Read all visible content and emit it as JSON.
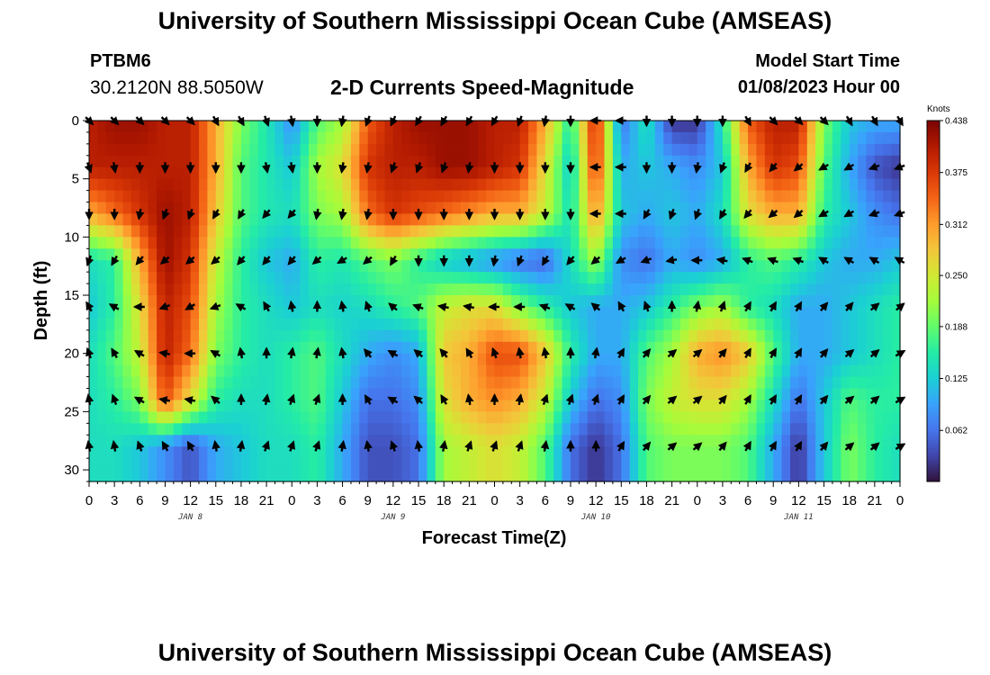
{
  "header": {
    "title": "University of Southern Mississippi Ocean Cube (AMSEAS)",
    "station": "PTBM6",
    "coordinates": "30.2120N  88.5050W",
    "subtitle": "2-D Currents Speed-Magnitude",
    "model_start_label": "Model Start Time",
    "model_start_value": "01/08/2023 Hour 00"
  },
  "footer": {
    "title": "University of Southern Mississippi Ocean Cube (AMSEAS)"
  },
  "chart_data": {
    "type": "heatmap",
    "title": "2-D Currents Speed-Magnitude",
    "xlabel": "Forecast Time(Z)",
    "ylabel": "Depth (ft)",
    "x_ticks": [
      "0",
      "3",
      "6",
      "9",
      "12",
      "15",
      "18",
      "21",
      "0",
      "3",
      "6",
      "9",
      "12",
      "15",
      "18",
      "21",
      "0",
      "3",
      "6",
      "9",
      "12",
      "15",
      "18",
      "21",
      "0",
      "3",
      "6",
      "9",
      "12",
      "15",
      "18",
      "21",
      "0"
    ],
    "date_labels": [
      {
        "hour": 12,
        "label": "JAN 8"
      },
      {
        "hour": 36,
        "label": "JAN 9"
      },
      {
        "hour": 60,
        "label": "JAN 10"
      },
      {
        "hour": 84,
        "label": "JAN 11"
      }
    ],
    "xlim_hours": [
      0,
      96
    ],
    "y_ticks": [
      0,
      5,
      10,
      15,
      20,
      25,
      30
    ],
    "ylim": [
      0,
      31
    ],
    "y_inverted": true,
    "colorbar": {
      "unit": "Knots",
      "ticks": [
        0.438,
        0.375,
        0.312,
        0.25,
        0.188,
        0.125,
        0.062
      ],
      "range": [
        0,
        0.438
      ],
      "colormap": [
        "#30123b",
        "#4145ab",
        "#4675ed",
        "#39a2fc",
        "#1bcfd4",
        "#24eca6",
        "#61fc6c",
        "#a4fc3b",
        "#d1e834",
        "#f3c63a",
        "#fe9b2d",
        "#f36315",
        "#d93806",
        "#b11901",
        "#7a0402"
      ]
    },
    "hours": [
      0,
      3,
      6,
      9,
      12,
      15,
      18,
      21,
      24,
      27,
      30,
      33,
      36,
      39,
      42,
      45,
      48,
      51,
      54,
      57,
      60,
      63,
      66,
      69,
      72,
      75,
      78,
      81,
      84,
      87,
      90,
      93,
      96
    ],
    "depths": [
      0,
      4,
      8,
      12,
      16,
      20,
      24,
      28
    ],
    "speed_knots": [
      [
        0.4,
        0.42,
        0.42,
        0.4,
        0.4,
        0.3,
        0.2,
        0.15,
        0.08,
        0.18,
        0.22,
        0.35,
        0.4,
        0.42,
        0.42,
        0.42,
        0.4,
        0.4,
        0.3,
        0.15,
        0.4,
        0.06,
        0.15,
        0.02,
        0.02,
        0.15,
        0.35,
        0.4,
        0.4,
        0.2,
        0.12,
        0.1,
        0.1
      ],
      [
        0.4,
        0.4,
        0.4,
        0.4,
        0.4,
        0.3,
        0.18,
        0.15,
        0.12,
        0.22,
        0.26,
        0.38,
        0.4,
        0.4,
        0.42,
        0.42,
        0.4,
        0.38,
        0.26,
        0.12,
        0.38,
        0.1,
        0.12,
        0.1,
        0.08,
        0.12,
        0.3,
        0.38,
        0.36,
        0.18,
        0.1,
        0.04,
        0.02
      ],
      [
        0.3,
        0.34,
        0.38,
        0.42,
        0.4,
        0.28,
        0.18,
        0.15,
        0.14,
        0.2,
        0.22,
        0.34,
        0.38,
        0.36,
        0.34,
        0.32,
        0.3,
        0.3,
        0.24,
        0.14,
        0.32,
        0.12,
        0.1,
        0.12,
        0.1,
        0.14,
        0.26,
        0.3,
        0.3,
        0.16,
        0.12,
        0.08,
        0.06
      ],
      [
        0.14,
        0.16,
        0.3,
        0.42,
        0.38,
        0.24,
        0.16,
        0.12,
        0.1,
        0.16,
        0.15,
        0.18,
        0.2,
        0.16,
        0.12,
        0.1,
        0.08,
        0.06,
        0.05,
        0.14,
        0.22,
        0.08,
        0.06,
        0.1,
        0.08,
        0.1,
        0.16,
        0.18,
        0.16,
        0.12,
        0.1,
        0.1,
        0.12
      ],
      [
        0.12,
        0.16,
        0.26,
        0.4,
        0.36,
        0.22,
        0.16,
        0.14,
        0.12,
        0.14,
        0.13,
        0.14,
        0.16,
        0.18,
        0.24,
        0.26,
        0.26,
        0.2,
        0.16,
        0.12,
        0.1,
        0.1,
        0.12,
        0.16,
        0.2,
        0.22,
        0.16,
        0.14,
        0.1,
        0.1,
        0.12,
        0.14,
        0.16
      ],
      [
        0.14,
        0.18,
        0.24,
        0.4,
        0.34,
        0.2,
        0.16,
        0.14,
        0.16,
        0.18,
        0.14,
        0.1,
        0.08,
        0.1,
        0.28,
        0.3,
        0.36,
        0.36,
        0.28,
        0.16,
        0.1,
        0.1,
        0.18,
        0.22,
        0.3,
        0.32,
        0.28,
        0.18,
        0.1,
        0.1,
        0.12,
        0.14,
        0.16
      ],
      [
        0.14,
        0.16,
        0.2,
        0.36,
        0.26,
        0.16,
        0.14,
        0.14,
        0.16,
        0.18,
        0.12,
        0.06,
        0.06,
        0.08,
        0.26,
        0.3,
        0.32,
        0.3,
        0.24,
        0.12,
        0.06,
        0.08,
        0.2,
        0.24,
        0.26,
        0.26,
        0.22,
        0.14,
        0.06,
        0.12,
        0.18,
        0.16,
        0.16
      ],
      [
        0.14,
        0.14,
        0.12,
        0.08,
        0.04,
        0.1,
        0.12,
        0.14,
        0.14,
        0.16,
        0.1,
        0.04,
        0.04,
        0.06,
        0.22,
        0.24,
        0.26,
        0.24,
        0.18,
        0.06,
        0.02,
        0.06,
        0.18,
        0.2,
        0.2,
        0.2,
        0.18,
        0.1,
        0.02,
        0.12,
        0.2,
        0.16,
        0.14
      ]
    ],
    "direction_deg": [
      [
        315,
        315,
        315,
        315,
        315,
        300,
        300,
        290,
        280,
        270,
        260,
        250,
        245,
        240,
        240,
        240,
        240,
        250,
        260,
        270,
        180,
        180,
        270,
        270,
        270,
        270,
        300,
        315,
        315,
        315,
        300,
        300,
        300
      ],
      [
        290,
        280,
        270,
        270,
        270,
        270,
        270,
        280,
        280,
        270,
        260,
        260,
        250,
        250,
        250,
        260,
        270,
        270,
        270,
        270,
        180,
        180,
        270,
        270,
        260,
        250,
        240,
        230,
        220,
        210,
        210,
        200,
        200
      ],
      [
        270,
        270,
        260,
        250,
        250,
        240,
        240,
        230,
        230,
        260,
        260,
        260,
        270,
        270,
        270,
        270,
        270,
        270,
        270,
        270,
        180,
        180,
        240,
        250,
        250,
        240,
        230,
        220,
        220,
        210,
        210,
        200,
        200
      ],
      [
        250,
        240,
        230,
        220,
        220,
        220,
        230,
        230,
        230,
        220,
        210,
        220,
        240,
        270,
        270,
        270,
        260,
        250,
        240,
        230,
        220,
        210,
        200,
        190,
        180,
        170,
        160,
        160,
        160,
        150,
        150,
        150,
        150
      ],
      [
        120,
        150,
        180,
        200,
        210,
        200,
        150,
        120,
        100,
        90,
        100,
        110,
        140,
        160,
        170,
        170,
        180,
        180,
        160,
        150,
        140,
        120,
        110,
        90,
        80,
        70,
        60,
        60,
        60,
        50,
        50,
        40,
        40
      ],
      [
        110,
        120,
        150,
        170,
        180,
        150,
        100,
        90,
        80,
        80,
        100,
        130,
        150,
        140,
        130,
        120,
        110,
        100,
        100,
        90,
        80,
        60,
        50,
        40,
        40,
        50,
        60,
        60,
        60,
        50,
        40,
        40,
        30
      ],
      [
        100,
        110,
        150,
        170,
        170,
        140,
        90,
        80,
        70,
        70,
        90,
        120,
        150,
        140,
        120,
        100,
        90,
        80,
        70,
        70,
        70,
        60,
        50,
        40,
        40,
        50,
        60,
        60,
        60,
        50,
        40,
        40,
        30
      ],
      [
        100,
        100,
        110,
        120,
        120,
        100,
        80,
        70,
        70,
        70,
        80,
        100,
        110,
        100,
        80,
        70,
        70,
        70,
        80,
        90,
        90,
        60,
        50,
        40,
        40,
        50,
        60,
        60,
        60,
        50,
        40,
        40,
        30
      ]
    ]
  }
}
